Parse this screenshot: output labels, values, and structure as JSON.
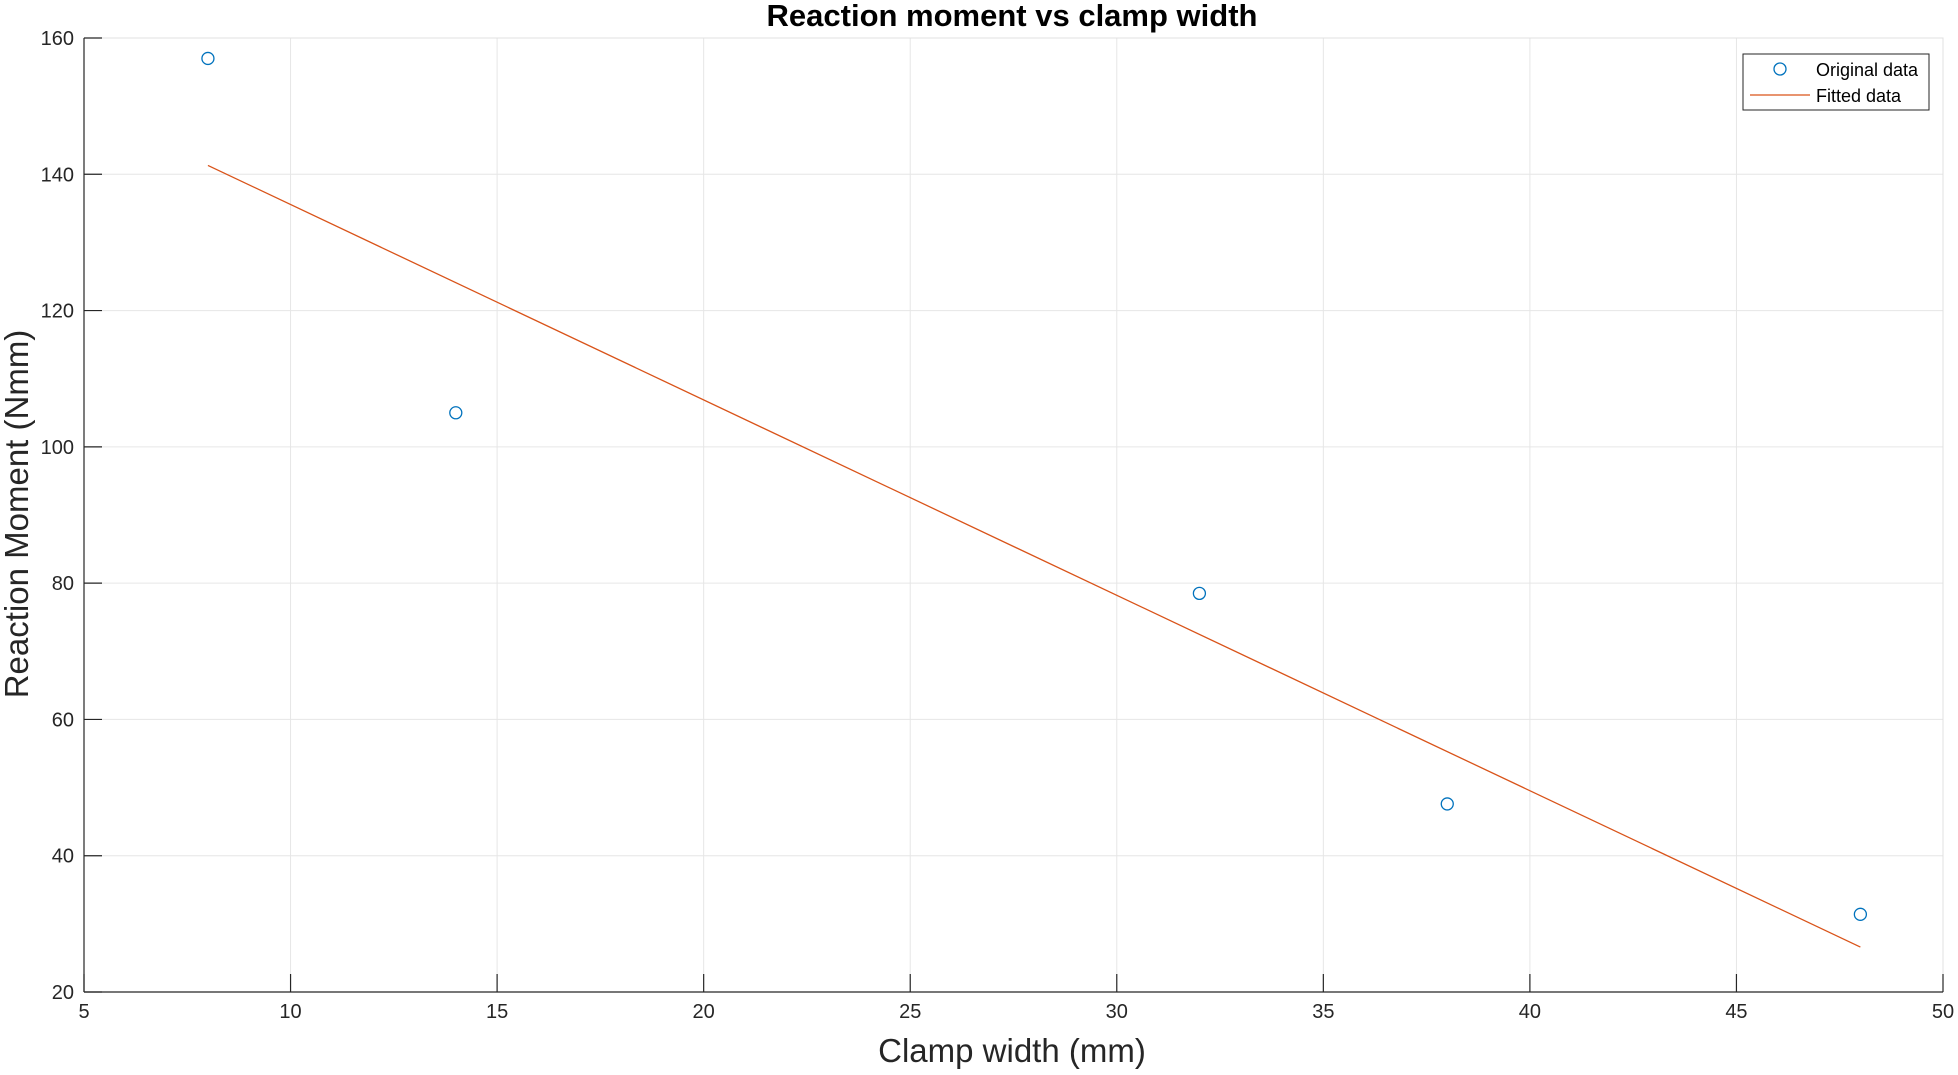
{
  "chart_data": {
    "type": "scatter",
    "title": "Reaction moment vs clamp width",
    "xlabel": "Clamp width (mm)",
    "ylabel": "Reaction Moment (Nmm)",
    "xlim": [
      5,
      50
    ],
    "ylim": [
      20,
      160
    ],
    "xticks": [
      5,
      10,
      15,
      20,
      25,
      30,
      35,
      40,
      45,
      50
    ],
    "yticks": [
      20,
      40,
      60,
      80,
      100,
      120,
      140,
      160
    ],
    "grid": true,
    "legend_position": "top-right",
    "series": [
      {
        "name": "Original data",
        "kind": "markers",
        "marker": "circle",
        "color": "#0072bd",
        "x": [
          8,
          14,
          32,
          38,
          48
        ],
        "y": [
          157,
          105,
          78.5,
          47.6,
          31.4
        ]
      },
      {
        "name": "Fitted data",
        "kind": "line",
        "color": "#d95319",
        "x": [
          8,
          48
        ],
        "y": [
          141.3,
          26.6
        ]
      }
    ]
  }
}
